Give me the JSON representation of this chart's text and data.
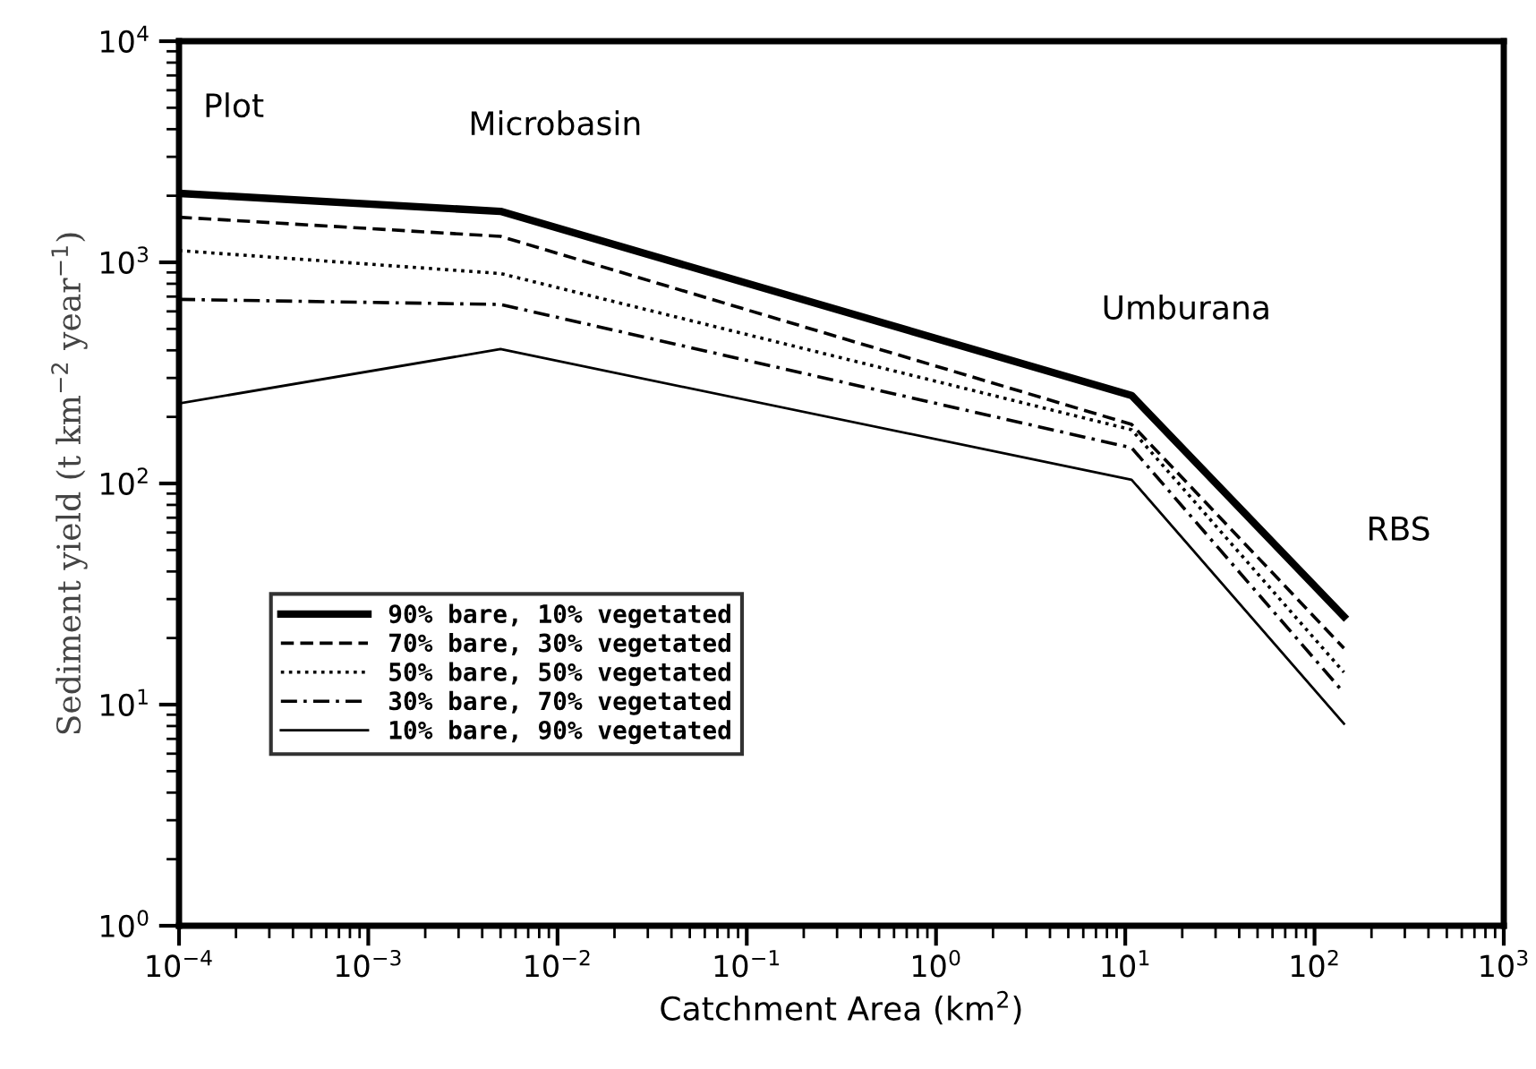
{
  "chart_data": {
    "type": "line",
    "xlabel": "Catchment Area (km$^{2}$)",
    "ylabel": "Sediment yield (t km$^{−2}$ year$^{−1}$)",
    "log": "xy",
    "grid": false,
    "legend": "bottom left",
    "marker": "none",
    "x": [
      0.0001,
      0.005,
      10.8,
      143
    ],
    "xlim": [
      0.0001,
      1000
    ],
    "ylim": [
      1,
      10000
    ],
    "xticks": [
      {
        "value": 0.0001,
        "label": "10$^{−4}$"
      },
      {
        "value": 0.001,
        "label": "10$^{−3}$"
      },
      {
        "value": 0.01,
        "label": "10$^{−2}$"
      },
      {
        "value": 0.1,
        "label": "10$^{−1}$"
      },
      {
        "value": 1,
        "label": "10$^{0}$"
      },
      {
        "value": 10,
        "label": "10$^{1}$"
      },
      {
        "value": 100,
        "label": "10$^{2}$"
      },
      {
        "value": 1000,
        "label": "10$^{3}$"
      }
    ],
    "yticks": [
      {
        "value": 1,
        "label": "10$^{0}$"
      },
      {
        "value": 10,
        "label": "10$^{1}$"
      },
      {
        "value": 100,
        "label": "10$^{2}$"
      },
      {
        "value": 1000,
        "label": "10$^{3}$"
      },
      {
        "value": 10000,
        "label": "10$^{4}$"
      }
    ],
    "series": [
      {
        "name": "90% bare, 10% vegetated",
        "color": "#000000",
        "line_style": "solid",
        "values": [
          2050,
          1700,
          250,
          25
        ]
      },
      {
        "name": "70% bare, 30% vegetated",
        "color": "#000000",
        "line_style": "dashed",
        "values": [
          1600,
          1310,
          185,
          18
        ]
      },
      {
        "name": "50% bare, 50% vegetated",
        "color": "#000000",
        "line_style": "dotted",
        "values": [
          1130,
          890,
          175,
          14
        ]
      },
      {
        "name": "30% bare, 70% vegetated",
        "color": "#000000",
        "line_style": "dashdot",
        "values": [
          680,
          645,
          145,
          11.3
        ]
      },
      {
        "name": "10% bare, 90% vegetated",
        "color": "#000000",
        "line_style": "solid",
        "values": [
          230,
          405,
          104,
          8.2
        ]
      }
    ],
    "annotations": [
      {
        "text": "Plot",
        "x": 0.0001,
        "y": 2050
      },
      {
        "text": "Microbasin",
        "x": 0.005,
        "y": 1700
      },
      {
        "text": "Umburana",
        "x": 10.8,
        "y": 250
      },
      {
        "text": "RBS",
        "x": 143,
        "y": 25
      }
    ]
  }
}
